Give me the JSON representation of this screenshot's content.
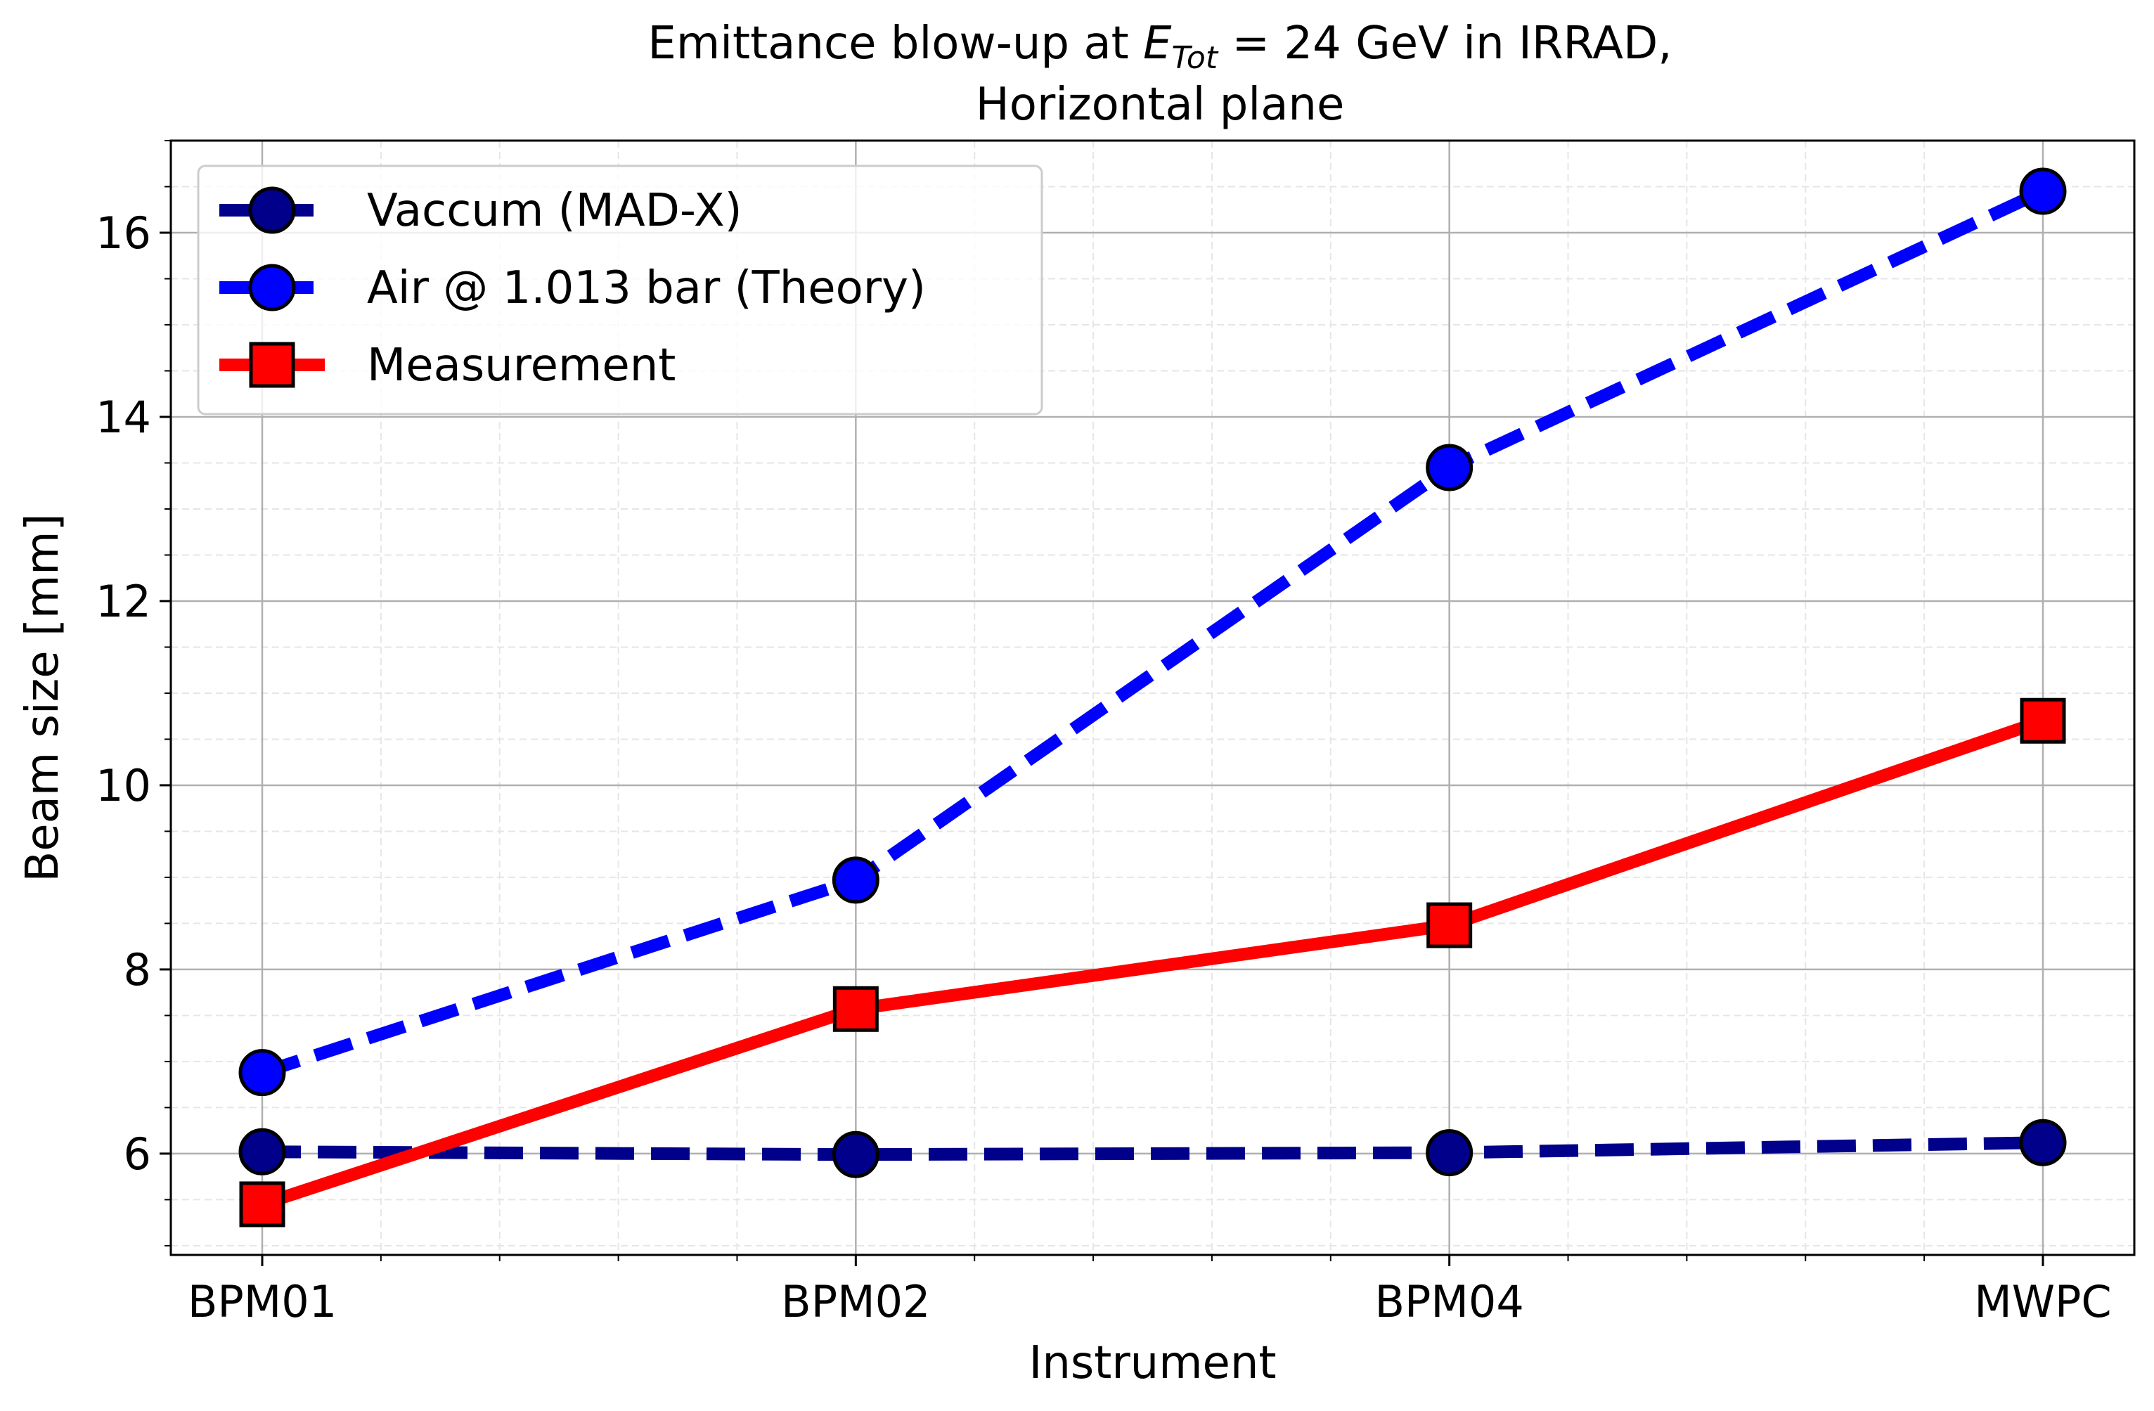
{
  "chart_data": {
    "type": "line",
    "title_line1_prefix": "Emittance blow-up at ",
    "title_symbol": "E",
    "title_subscript": "Tot",
    "title_line1_suffix": " = 24 GeV in IRRAD,",
    "title_line2": "Horizontal plane",
    "xlabel": "Instrument",
    "ylabel": "Beam size [mm]",
    "categories": [
      "BPM01",
      "BPM02",
      "BPM04",
      "MWPC"
    ],
    "ylim": [
      4.9,
      17.0
    ],
    "yticks": [
      6,
      8,
      10,
      12,
      14,
      16
    ],
    "ytick_labels": [
      "6",
      "8",
      "10",
      "12",
      "14",
      "16"
    ],
    "grid": true,
    "minor_grid": true,
    "legend_position": "top-left",
    "series": [
      {
        "name": "Vaccum (MAD-X)",
        "values": [
          6.02,
          5.99,
          6.01,
          6.12
        ],
        "color": "#00008b",
        "line_style": "dashed",
        "marker": "circle"
      },
      {
        "name": "Air @ 1.013 bar (Theory)",
        "values": [
          6.88,
          8.97,
          13.45,
          16.45
        ],
        "color": "#0000ff",
        "line_style": "dashed",
        "marker": "circle"
      },
      {
        "name": "Measurement",
        "values": [
          5.45,
          7.57,
          8.48,
          10.7
        ],
        "color": "#ff0000",
        "line_style": "solid",
        "marker": "square"
      }
    ]
  }
}
